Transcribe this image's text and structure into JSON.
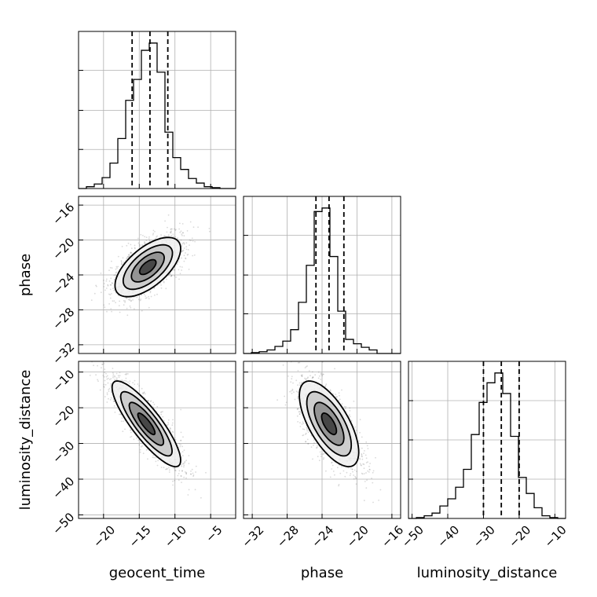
{
  "chart_data": {
    "type": "corner",
    "parameters": [
      "geocent_time",
      "phase",
      "luminosity_distance"
    ],
    "xlabel_texts": [
      "geocent_time",
      "phase",
      "luminosity_distance"
    ],
    "ylabel_texts": [
      "phase",
      "luminosity_distance"
    ],
    "ranges": {
      "geocent_time": [
        -23.5,
        -1.5
      ],
      "phase": [
        -33,
        -15
      ],
      "luminosity_distance": [
        -51,
        -7
      ]
    },
    "ticks": {
      "geocent_time": [
        -20,
        -15,
        -10,
        -5
      ],
      "phase": [
        -32,
        -28,
        -24,
        -20,
        -16
      ],
      "luminosity_distance": [
        -50,
        -40,
        -30,
        -20,
        -10
      ]
    },
    "tick_labels": {
      "geocent_time": [
        "−20",
        "−15",
        "−10",
        "−5"
      ],
      "phase": [
        "−32",
        "−28",
        "−24",
        "−20",
        "−16"
      ],
      "luminosity_distance": [
        "−50",
        "−40",
        "−30",
        "−20",
        "−10"
      ]
    },
    "quantiles": {
      "geocent_time": [
        -16,
        -13.5,
        -11
      ],
      "phase": [
        -24.7,
        -23.2,
        -21.5
      ],
      "luminosity_distance": [
        -30,
        -25,
        -20
      ]
    },
    "histograms": {
      "geocent_time": {
        "edges": [
          -23.5,
          -22.4,
          -21.3,
          -20.2,
          -19.1,
          -18,
          -16.9,
          -15.8,
          -14.7,
          -13.6,
          -12.5,
          -11.4,
          -10.3,
          -9.2,
          -8.1,
          -7,
          -5.9,
          -4.8,
          -3.7,
          -2.6,
          -1.5
        ],
        "counts": [
          0,
          2,
          5,
          12,
          28,
          55,
          97,
          120,
          152,
          160,
          128,
          62,
          34,
          21,
          11,
          6,
          2,
          1,
          0,
          0
        ]
      },
      "phase": {
        "edges": [
          -33,
          -32.1,
          -31.2,
          -30.3,
          -29.4,
          -28.5,
          -27.6,
          -26.7,
          -25.8,
          -24.9,
          -24,
          -23.1,
          -22.2,
          -21.3,
          -20.4,
          -19.5,
          -18.6,
          -17.7,
          -16.8,
          -15.9,
          -15
        ],
        "counts": [
          0,
          1,
          2,
          4,
          8,
          14,
          27,
          58,
          100,
          161,
          165,
          110,
          48,
          16,
          11,
          7,
          4,
          0,
          0,
          0
        ]
      },
      "luminosity_distance": {
        "edges": [
          -51,
          -48.8,
          -46.6,
          -44.4,
          -42.2,
          -40,
          -37.8,
          -35.6,
          -33.4,
          -31.2,
          -29,
          -26.8,
          -24.6,
          -22.4,
          -20.2,
          -18,
          -15.8,
          -13.6,
          -11.4,
          -9.2,
          -7
        ],
        "counts": [
          0,
          1,
          3,
          6,
          14,
          22,
          35,
          55,
          94,
          130,
          152,
          163,
          140,
          92,
          46,
          28,
          12,
          3,
          1,
          0
        ]
      }
    },
    "pairs": [
      {
        "x": "geocent_time",
        "y": "phase",
        "center": [
          -13.8,
          -23.1
        ],
        "sd": [
          2.3,
          1.7
        ],
        "rho": 0.62,
        "contour_levels_sigma": [
          0.5,
          1,
          1.5,
          2
        ]
      },
      {
        "x": "geocent_time",
        "y": "luminosity_distance",
        "center": [
          -14.0,
          -24.5
        ],
        "sd": [
          2.4,
          6.0
        ],
        "rho": -0.85,
        "contour_levels_sigma": [
          0.5,
          1,
          1.5,
          2
        ]
      },
      {
        "x": "phase",
        "y": "luminosity_distance",
        "center": [
          -23.2,
          -24.5
        ],
        "sd": [
          1.7,
          6.0
        ],
        "rho": -0.66,
        "contour_levels_sigma": [
          0.5,
          1,
          1.5,
          2
        ]
      }
    ],
    "grid": true,
    "colors": {
      "hist": "#000000",
      "samples": "#555555",
      "fill_levels": [
        "#f0f0f0",
        "#c8c8c8",
        "#8a8a8a",
        "#3a3a3a"
      ]
    }
  }
}
